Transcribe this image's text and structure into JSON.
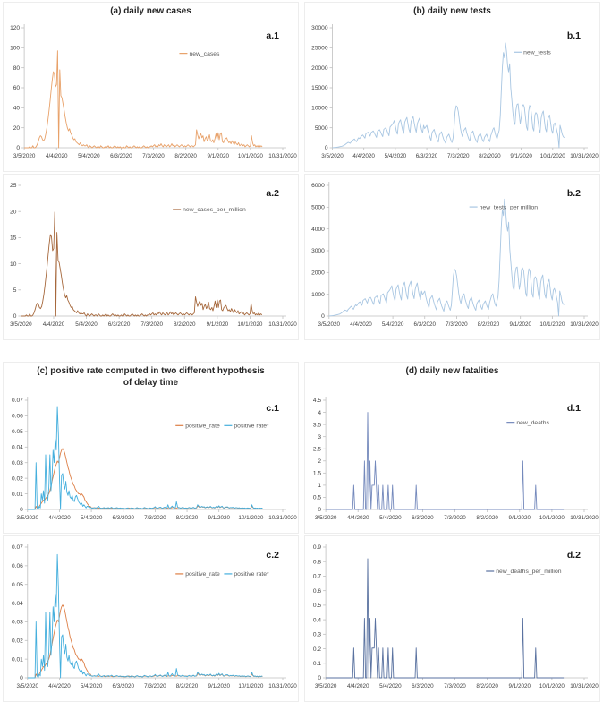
{
  "panels": [
    {
      "id": "a",
      "title": "(a) daily new cases"
    },
    {
      "id": "b",
      "title": "(b) daily new tests"
    },
    {
      "id": "c",
      "title": "(c) positive rate computed in two different hypothesis\nof delay time"
    },
    {
      "id": "d",
      "title": "(d) daily new fatalities"
    }
  ],
  "style": {
    "axis_color": "#bfbfbf",
    "tick_label_color": "#404040",
    "legend_text_color": "#595959",
    "corner_label_color": "#1a1a1a"
  },
  "chart_data": {
    "type": "line",
    "start_date": "3/5/2020",
    "x_span_days": 240,
    "data_days": 222,
    "x_tick_labels": [
      "3/5/2020",
      "4/4/2020",
      "5/4/2020",
      "6/3/2020",
      "7/3/2020",
      "8/2/2020",
      "9/1/2020",
      "10/1/2020",
      "10/31/2020"
    ],
    "x_tick_interval_days": 30,
    "grid": false,
    "per_million_scale": 0.205,
    "series_values": {
      "new_cases": [
        0,
        0,
        0,
        0,
        0,
        1,
        0,
        0,
        2,
        0,
        0,
        1,
        3,
        6,
        10,
        12,
        11,
        8,
        7,
        9,
        14,
        20,
        28,
        37,
        47,
        58,
        68,
        76,
        74,
        61,
        63,
        97,
        0,
        78,
        52,
        50,
        44,
        38,
        31,
        25,
        20,
        17,
        19,
        15,
        13,
        10,
        8,
        9,
        6,
        5,
        4,
        3,
        5,
        3,
        2,
        3,
        2,
        2,
        3,
        1,
        0,
        2,
        1,
        0,
        1,
        2,
        1,
        0,
        1,
        1,
        0,
        2,
        1,
        0,
        0,
        1,
        0,
        1,
        2,
        0,
        1,
        0,
        0,
        1,
        2,
        1,
        0,
        1,
        0,
        1,
        0,
        0,
        1,
        0,
        0,
        2,
        1,
        0,
        1,
        0,
        0,
        1,
        2,
        1,
        0,
        1,
        0,
        1,
        0,
        0,
        1,
        2,
        1,
        0,
        1,
        0,
        1,
        1,
        2,
        1,
        2,
        3,
        1,
        2,
        1,
        3,
        2,
        4,
        2,
        1,
        3,
        2,
        1,
        2,
        3,
        1,
        2,
        4,
        2,
        3,
        1,
        2,
        3,
        2,
        1,
        2,
        3,
        2,
        1,
        2,
        1,
        2,
        3,
        2,
        1,
        2,
        2,
        1,
        2,
        3,
        18,
        13,
        9,
        12,
        14,
        10,
        12,
        6,
        9,
        11,
        7,
        9,
        13,
        7,
        6,
        8,
        5,
        9,
        14,
        8,
        15,
        8,
        14,
        15,
        6,
        5,
        8,
        9,
        10,
        7,
        5,
        6,
        4,
        7,
        5,
        3,
        6,
        4,
        3,
        5,
        2,
        3,
        4,
        2,
        3,
        1,
        2,
        3,
        2,
        1,
        2,
        12,
        5,
        2,
        3,
        1,
        2,
        1,
        3,
        1,
        2,
        1
      ],
      "new_tests": [
        20,
        40,
        60,
        80,
        120,
        160,
        200,
        260,
        320,
        380,
        450,
        600,
        750,
        950,
        1150,
        1350,
        1250,
        1100,
        1500,
        1750,
        2000,
        2200,
        1800,
        1500,
        2100,
        2500,
        2300,
        2700,
        3000,
        3200,
        2800,
        2400,
        3500,
        3700,
        3900,
        3400,
        2900,
        3800,
        4000,
        4200,
        3700,
        3100,
        2600,
        4100,
        4300,
        4500,
        3900,
        3300,
        2800,
        4600,
        4800,
        5000,
        4300,
        3600,
        3000,
        5200,
        5500,
        5800,
        6200,
        6800,
        5400,
        4200,
        3400,
        6000,
        6600,
        7000,
        5600,
        4400,
        3600,
        6400,
        7000,
        7600,
        6000,
        4600,
        3800,
        6600,
        7200,
        7800,
        6200,
        4800,
        3900,
        6000,
        6800,
        7400,
        5800,
        4500,
        3700,
        5600,
        4800,
        5200,
        5600,
        4400,
        3400,
        2600,
        1800,
        3800,
        4200,
        4600,
        3600,
        2800,
        2000,
        1400,
        3200,
        3600,
        4000,
        3000,
        2200,
        1600,
        1100,
        2600,
        3000,
        3400,
        2600,
        1900,
        1300,
        2400,
        5400,
        9000,
        10500,
        10200,
        9000,
        7000,
        5000,
        3600,
        2800,
        4200,
        4600,
        5000,
        3800,
        3000,
        2200,
        1700,
        3400,
        3800,
        4200,
        3200,
        2400,
        1800,
        1300,
        2800,
        3200,
        3600,
        2800,
        2000,
        1500,
        2600,
        3000,
        3400,
        2600,
        2000,
        1500,
        3000,
        3800,
        4600,
        5000,
        3800,
        2800,
        2200,
        3400,
        4400,
        8000,
        14000,
        20000,
        23800,
        22500,
        26200,
        24000,
        20500,
        19000,
        21000,
        15000,
        12000,
        9000,
        6500,
        5800,
        9500,
        10800,
        11000,
        8500,
        6000,
        7500,
        10400,
        10800,
        10200,
        7800,
        5200,
        4400,
        9000,
        10600,
        10000,
        7600,
        5000,
        4200,
        8200,
        8800,
        8400,
        6600,
        4600,
        3800,
        7400,
        8600,
        9200,
        7000,
        4800,
        4000,
        6800,
        7600,
        8200,
        6200,
        4400,
        3600,
        5800,
        6200,
        5400,
        4200,
        3000,
        0,
        5600,
        4600,
        3400,
        2800,
        2500
      ],
      "positive_rate": [
        0,
        0,
        0,
        0,
        0,
        0,
        0,
        0,
        0.002,
        0.001,
        0.001,
        0.002,
        0.003,
        0.004,
        0.005,
        0.006,
        0.006,
        0.007,
        0.008,
        0.009,
        0.01,
        0.012,
        0.015,
        0.018,
        0.021,
        0.024,
        0.027,
        0.029,
        0.031,
        0.03,
        0.033,
        0.036,
        0.038,
        0.039,
        0.038,
        0.036,
        0.033,
        0.03,
        0.027,
        0.025,
        0.022,
        0.02,
        0.018,
        0.016,
        0.015,
        0.013,
        0.012,
        0.011,
        0.01,
        0.01,
        0.009,
        0.01,
        0.009,
        0.008,
        0.006,
        0.005,
        0.004,
        0.003,
        0.002,
        0.002,
        0.001,
        0.001,
        0.001,
        0.001,
        0.001,
        0.001,
        0.0008,
        0.0008,
        0.001,
        0.0009,
        0.0007,
        0.001,
        0.0008,
        0.0006,
        0.0008,
        0.001,
        0.0007,
        0.0009,
        0.001,
        0.0008,
        0.0006,
        0.0007,
        0.0009,
        0.0008,
        0.001,
        0.0009,
        0.0007,
        0.0008,
        0.0006,
        0.0008,
        0.0007,
        0.0005,
        0.0007,
        0.0006,
        0.0008,
        0.001,
        0.0008,
        0.0006,
        0.0007,
        0.0009,
        0.0007,
        0.0005,
        0.0008,
        0.001,
        0.0009,
        0.0007,
        0.0008,
        0.0006,
        0.0005,
        0.0008,
        0.001,
        0.0009,
        0.0008,
        0.0006,
        0.0007,
        0.0009,
        0.0008,
        0.0006,
        0.0008,
        0.001,
        0.0012,
        0.001,
        0.0008,
        0.0009,
        0.0011,
        0.0012,
        0.001,
        0.0008,
        0.001,
        0.0012,
        0.0009,
        0.0008,
        0.001,
        0.0011,
        0.0009,
        0.001,
        0.0012,
        0.0014,
        0.0012,
        0.001,
        0.0009,
        0.0011,
        0.0013,
        0.001,
        0.0008,
        0.001,
        0.0012,
        0.001,
        0.0009,
        0.001,
        0.0008,
        0.0009,
        0.0011,
        0.001,
        0.0008,
        0.001,
        0.0012,
        0.001,
        0.0009,
        0.001,
        0.0022,
        0.0018,
        0.0012,
        0.0015,
        0.0018,
        0.0014,
        0.0016,
        0.001,
        0.0013,
        0.0015,
        0.0011,
        0.0013,
        0.0017,
        0.0012,
        0.001,
        0.0013,
        0.0009,
        0.0014,
        0.0019,
        0.0013,
        0.002,
        0.0012,
        0.0016,
        0.0019,
        0.001,
        0.0009,
        0.0013,
        0.0014,
        0.0015,
        0.0011,
        0.0009,
        0.0012,
        0.001,
        0.0012,
        0.001,
        0.0008,
        0.0011,
        0.001,
        0.0008,
        0.001,
        0.0007,
        0.0008,
        0.001,
        0.0007,
        0.0009,
        0.0006,
        0.0007,
        0.0009,
        0.0008,
        0.0006,
        0.0008,
        0.0021,
        0.0012,
        0.0007,
        0.0009,
        0.0006,
        0.0008,
        0.0005,
        0.0009,
        0.0006,
        0.0008,
        0.0007
      ],
      "positive_rate_star": [
        0,
        0,
        0,
        0,
        0,
        0,
        0,
        0,
        0.03,
        0.001,
        0,
        0.002,
        0.001,
        0.01,
        0.006,
        0.012,
        0.004,
        0.035,
        0.01,
        0.006,
        0.014,
        0.035,
        0.012,
        0.02,
        0.038,
        0.03,
        0.045,
        0.038,
        0.066,
        0.048,
        0.02,
        0,
        0.022,
        0.023,
        0.016,
        0.013,
        0.018,
        0.011,
        0.009,
        0.012,
        0.008,
        0.007,
        0.009,
        0.006,
        0.005,
        0.008,
        0.009,
        0.007,
        0.005,
        0.004,
        0.003,
        0.004,
        0.002,
        0.003,
        0.002,
        0.001,
        0.002,
        0.002,
        0.001,
        0.0015,
        0.001,
        0.0008,
        0.001,
        0.0012,
        0.0008,
        0.001,
        0.0015,
        0.002,
        0.001,
        0.0008,
        0.0006,
        0.001,
        0.0012,
        0.0008,
        0.0006,
        0.0009,
        0.0012,
        0.0008,
        0.001,
        0.0014,
        0.0009,
        0.0006,
        0.0008,
        0.001,
        0.0012,
        0.0009,
        0.0007,
        0.001,
        0.0008,
        0.0006,
        0.0009,
        0.0007,
        0.0005,
        0.0008,
        0.001,
        0.0007,
        0.0005,
        0.0008,
        0.0011,
        0.0008,
        0.0006,
        0.0004,
        0.0009,
        0.0012,
        0.0008,
        0.0006,
        0.0009,
        0.0007,
        0.0004,
        0.0009,
        0.0013,
        0.001,
        0.0008,
        0.0005,
        0.0008,
        0.001,
        0.0009,
        0.0007,
        0.001,
        0.0012,
        0.0018,
        0.001,
        0.0007,
        0.001,
        0.0013,
        0.0015,
        0.001,
        0.0007,
        0.0012,
        0.0015,
        0.001,
        0.0007,
        0.003,
        0.0012,
        0.0008,
        0.0015,
        0.0022,
        0.0012,
        0.0008,
        0.0012,
        0.005,
        0.0018,
        0.001,
        0.0012,
        0.0008,
        0.0011,
        0.0015,
        0.001,
        0.0008,
        0.0009,
        0.0006,
        0.001,
        0.0013,
        0.0009,
        0.0007,
        0.0011,
        0.0014,
        0.0008,
        0.001,
        0.0012,
        0.003,
        0.0022,
        0.0013,
        0.0016,
        0.002,
        0.0015,
        0.0018,
        0.0011,
        0.0015,
        0.0017,
        0.0012,
        0.0015,
        0.002,
        0.0013,
        0.0011,
        0.0015,
        0.001,
        0.0016,
        0.0022,
        0.0014,
        0.0024,
        0.0013,
        0.0018,
        0.0021,
        0.0011,
        0.001,
        0.0015,
        0.0016,
        0.0017,
        0.0012,
        0.001,
        0.0013,
        0.0011,
        0.0014,
        0.0011,
        0.0009,
        0.0012,
        0.0011,
        0.0009,
        0.0011,
        0.0008,
        0.0009,
        0.0011,
        0.0008,
        0.001,
        0.0007,
        0.0008,
        0.001,
        0.0009,
        0.0007,
        0.0009,
        0.003,
        0.0014,
        0.0008,
        0.001,
        0.0007,
        0.0009,
        0.0006,
        0.001,
        0.0007,
        0.0009,
        0.0008
      ],
      "new_deaths_events": [
        [
          26,
          1
        ],
        [
          36,
          2
        ],
        [
          39,
          4
        ],
        [
          41,
          2
        ],
        [
          43,
          1
        ],
        [
          44,
          1
        ],
        [
          45,
          1
        ],
        [
          46,
          2
        ],
        [
          47,
          1
        ],
        [
          49,
          1
        ],
        [
          53,
          1
        ],
        [
          58,
          1
        ],
        [
          62,
          1
        ],
        [
          84,
          1
        ],
        [
          183,
          2
        ],
        [
          195,
          1
        ]
      ]
    },
    "charts": [
      {
        "id": "a1",
        "corner_label": "a.1",
        "h": 172,
        "ylim": [
          0,
          120
        ],
        "ytick_step": 20,
        "series": [
          {
            "label": "new_cases",
            "key": "new_cases",
            "scale": 1,
            "color": "#e8a169"
          }
        ],
        "legend": {
          "y": 0.23,
          "items_x": [
            0.6
          ]
        }
      },
      {
        "id": "a2",
        "corner_label": "a.2",
        "h": 184,
        "ylim": [
          0,
          25
        ],
        "ytick_step": 5,
        "series": [
          {
            "label": "new_cases_per_million",
            "key": "new_cases",
            "scale": 0.205,
            "color": "#a6683c"
          }
        ],
        "legend": {
          "y": 0.2,
          "items_x": [
            0.58
          ]
        }
      },
      {
        "id": "b1",
        "corner_label": "b.1",
        "h": 172,
        "ylim": [
          0,
          30000
        ],
        "ytick_step": 5000,
        "series": [
          {
            "label": "new_tests",
            "key": "new_tests",
            "scale": 1,
            "color": "#a8c6e2"
          }
        ],
        "legend": {
          "y": 0.22,
          "items_x": [
            0.72
          ]
        }
      },
      {
        "id": "b2",
        "corner_label": "b.2",
        "h": 184,
        "ylim": [
          0,
          6000
        ],
        "ytick_step": 1000,
        "series": [
          {
            "label": "new_tests_per million",
            "key": "new_tests",
            "scale": 0.205,
            "color": "#a8c6e2"
          }
        ],
        "legend": {
          "y": 0.18,
          "items_x": [
            0.55
          ]
        }
      },
      {
        "id": "c1",
        "corner_label": "c.1",
        "h": 160,
        "ylim": [
          0,
          0.07
        ],
        "ytick_step": 0.01,
        "series": [
          {
            "label": "positive_rate",
            "key": "positive_rate",
            "scale": 1,
            "color": "#dd7e45"
          },
          {
            "label": "positive rate*",
            "key": "positive_rate_star",
            "scale": 1,
            "color": "#45afdd"
          }
        ],
        "legend": {
          "y": 0.25,
          "items_x": [
            0.58,
            0.77
          ]
        }
      },
      {
        "id": "c2",
        "corner_label": "c.2",
        "h": 184,
        "ylim": [
          0,
          0.07
        ],
        "ytick_step": 0.01,
        "series": [
          {
            "label": "positive_rate",
            "key": "positive_rate",
            "scale": 1,
            "color": "#dd7e45"
          },
          {
            "label": "positive rate*",
            "key": "positive_rate_star",
            "scale": 1,
            "color": "#45afdd"
          }
        ],
        "legend": {
          "y": 0.22,
          "items_x": [
            0.58,
            0.77
          ]
        }
      },
      {
        "id": "d1",
        "corner_label": "d.1",
        "h": 160,
        "ylim": [
          0,
          4.5
        ],
        "ytick_step": 0.5,
        "series": [
          {
            "label": "new_deaths",
            "key": "new_deaths_events",
            "scale": 1,
            "color": "#7489bc"
          }
        ],
        "legend": {
          "y": 0.22,
          "items_x": [
            0.7
          ]
        }
      },
      {
        "id": "d2",
        "corner_label": "d.2",
        "h": 184,
        "ylim": [
          0,
          0.9
        ],
        "ytick_step": 0.1,
        "series": [
          {
            "label": "new_deaths_per_million",
            "key": "new_deaths_events",
            "scale": 0.205,
            "color": "#5a72a0"
          }
        ],
        "legend": {
          "y": 0.2,
          "items_x": [
            0.62
          ]
        }
      }
    ]
  }
}
